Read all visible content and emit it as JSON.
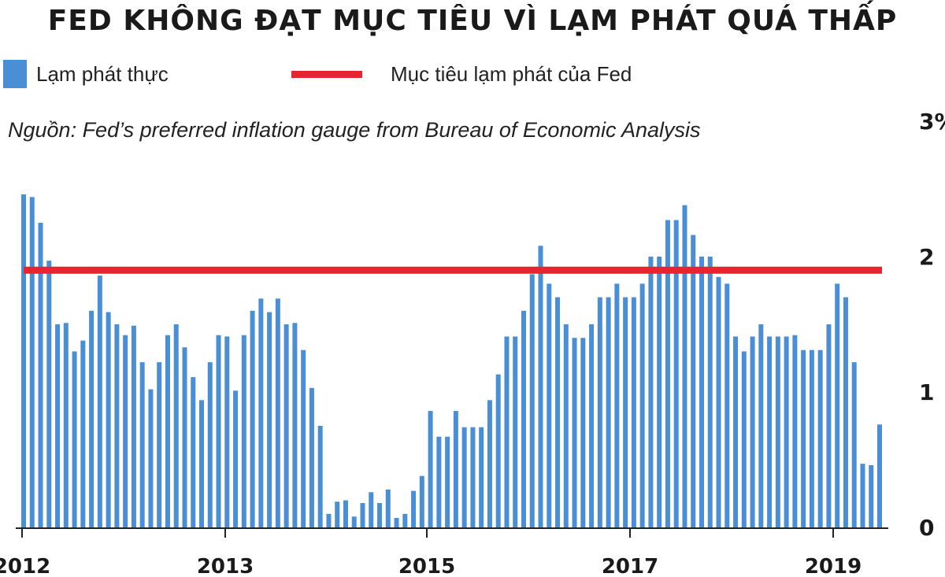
{
  "title": "FED KHÔNG ĐẠT MỤC TIÊU VÌ LẠM PHÁT QUÁ THẤP",
  "legend": {
    "actual_label": "Lạm phát thực",
    "target_label": "Mục tiêu lạm phát của Fed"
  },
  "source": "Nguồn: Fed’s preferred inflation gauge from Bureau of Economic Analysis",
  "colors": {
    "bar": "#4a8fd6",
    "target_line": "#e8242e"
  },
  "chart_data": {
    "type": "bar",
    "title": "FED KHÔNG ĐẠT MỤC TIÊU VÌ LẠM PHÁT QUÁ THẤP",
    "series": [
      {
        "name": "Lạm phát thực",
        "values": [
          2.46,
          2.44,
          2.25,
          1.97,
          1.5,
          1.51,
          1.3,
          1.38,
          1.6,
          1.86,
          1.59,
          1.5,
          1.42,
          1.49,
          1.22,
          1.02,
          1.22,
          1.42,
          1.5,
          1.33,
          1.11,
          0.94,
          1.22,
          1.42,
          1.41,
          1.01,
          1.42,
          1.6,
          1.69,
          1.59,
          1.69,
          1.5,
          1.51,
          1.31,
          1.03,
          0.75,
          0.1,
          0.19,
          0.2,
          0.08,
          0.18,
          0.26,
          0.18,
          0.28,
          0.07,
          0.1,
          0.27,
          0.38,
          0.86,
          0.67,
          0.67,
          0.86,
          0.74,
          0.74,
          0.74,
          0.94,
          1.13,
          1.41,
          1.41,
          1.6,
          1.87,
          2.08,
          1.8,
          1.7,
          1.5,
          1.4,
          1.4,
          1.5,
          1.7,
          1.7,
          1.8,
          1.7,
          1.7,
          1.8,
          2.0,
          2.0,
          2.27,
          2.27,
          2.38,
          2.16,
          2.0,
          2.0,
          1.85,
          1.8,
          1.41,
          1.3,
          1.41,
          1.5,
          1.41,
          1.41,
          1.41,
          1.42,
          1.31,
          1.31,
          1.31,
          1.5,
          1.8,
          1.7,
          1.22,
          0.47,
          0.46,
          0.76
        ]
      }
    ],
    "target": {
      "name": "Mục tiêu lạm phát của Fed",
      "value": 1.9
    },
    "yticks": [
      {
        "value": 0,
        "label": "0"
      },
      {
        "value": 1,
        "label": "1"
      },
      {
        "value": 2,
        "label": "2"
      },
      {
        "value": 3,
        "label": "3%"
      }
    ],
    "xticks": [
      {
        "index": 0,
        "label": "2012"
      },
      {
        "index": 20,
        "label": "2013"
      },
      {
        "index": 40,
        "label": "2015"
      },
      {
        "index": 60,
        "label": "2017"
      },
      {
        "index": 80,
        "label": "2019"
      }
    ],
    "ylim": [
      0,
      3
    ],
    "grid": false,
    "legend_position": "top-left"
  }
}
